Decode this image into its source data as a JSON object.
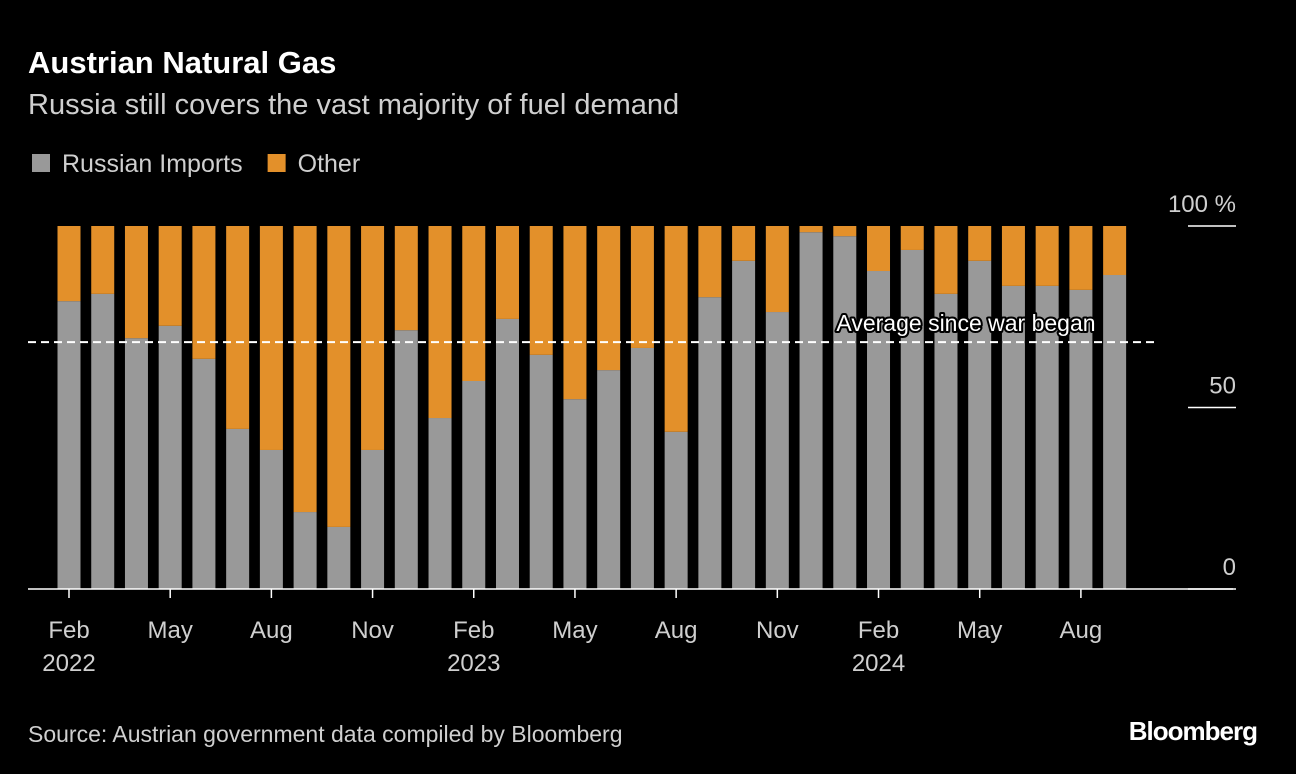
{
  "chart_data": {
    "type": "stacked_bar",
    "title": "Austrian Natural Gas",
    "subtitle": "Russia still covers the vast majority of fuel demand",
    "source": "Source: Austrian government data compiled by Bloomberg",
    "brand": "Bloomberg",
    "categories": [
      "Feb 2022",
      null,
      null,
      "May",
      null,
      null,
      "Aug",
      null,
      null,
      "Nov",
      null,
      null,
      "Feb 2023",
      null,
      null,
      "May",
      null,
      null,
      "Aug",
      null,
      null,
      "Nov",
      null,
      null,
      "Feb 2024",
      null,
      null,
      "May",
      null,
      null,
      "Aug",
      null
    ],
    "series": [
      {
        "name": "Russian Imports",
        "color": "#999999",
        "values": [
          79.3,
          81.3,
          69.1,
          72.5,
          63.4,
          44.1,
          38.3,
          21.2,
          17.1,
          38.3,
          71.3,
          47.1,
          57.3,
          74.4,
          64.5,
          52.3,
          60.3,
          66.4,
          43.3,
          80.4,
          90.4,
          76.3,
          98.3,
          97.2,
          87.6,
          93.4,
          81.3,
          90.4,
          83.5,
          83.5,
          82.4,
          86.5
        ]
      },
      {
        "name": "Other",
        "color": "#e3902a",
        "values": [
          20.7,
          18.7,
          30.9,
          27.5,
          36.6,
          55.9,
          61.7,
          78.8,
          82.9,
          61.7,
          28.7,
          52.9,
          42.7,
          25.6,
          35.5,
          47.7,
          39.7,
          33.6,
          56.7,
          19.6,
          9.6,
          23.7,
          1.7,
          2.8,
          12.4,
          6.6,
          18.7,
          9.6,
          16.5,
          16.5,
          17.6,
          13.5
        ]
      }
    ],
    "average": {
      "label": "Average since war began",
      "value": 68
    },
    "ylim": [
      0,
      100
    ],
    "yticks": [
      0,
      50,
      {
        "value": 100,
        "label": "100 %"
      }
    ]
  }
}
